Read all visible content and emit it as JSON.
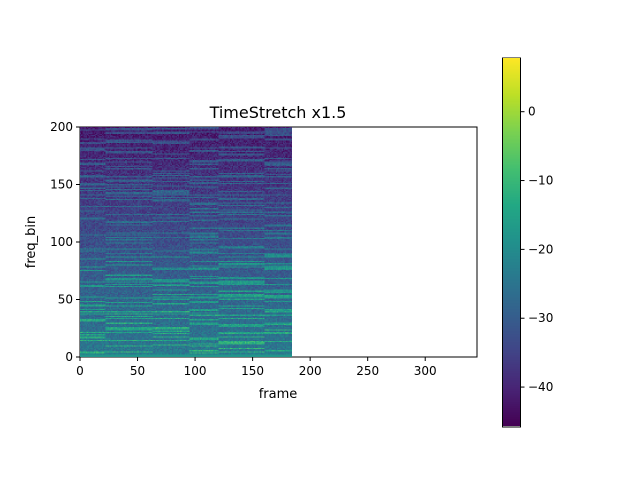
{
  "chart_data": {
    "type": "heatmap",
    "title": "TimeStretch x1.5",
    "xlabel": "frame",
    "ylabel": "freq_bin",
    "xlim": [
      0,
      345
    ],
    "ylim": [
      0,
      200
    ],
    "xticks": [
      "0",
      "50",
      "100",
      "150",
      "200",
      "250",
      "300"
    ],
    "yticks": [
      "0",
      "50",
      "100",
      "150",
      "200"
    ],
    "data_frames": 184,
    "data_freq_bins": 201,
    "colormap": "viridis",
    "colorbar": {
      "range": [
        -45.8,
        7.8
      ],
      "ticks": [
        "0",
        "−10",
        "−20",
        "−30",
        "−40"
      ]
    },
    "grid": false
  }
}
